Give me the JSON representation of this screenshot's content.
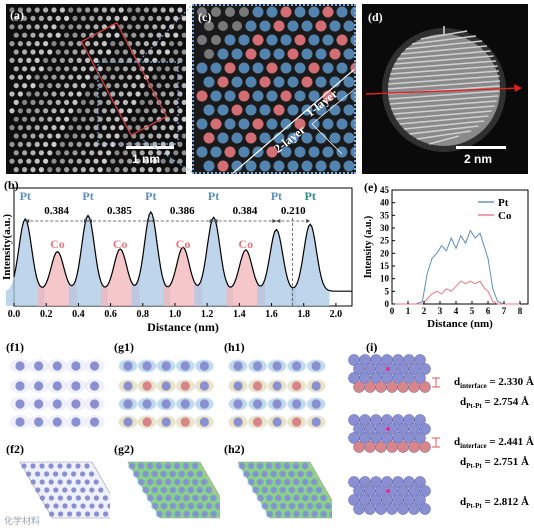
{
  "panels": {
    "a": {
      "label": "(a)",
      "scale": "1 nm"
    },
    "c": {
      "label": "(c)",
      "layer1": "1-layer",
      "layer2": "2-layer"
    },
    "d": {
      "label": "(d)",
      "scale": "2 nm"
    },
    "b": {
      "label": "(b)"
    },
    "e": {
      "label": "(e)"
    },
    "f1": {
      "label": "(f1)"
    },
    "f2": {
      "label": "(f2)"
    },
    "g1": {
      "label": "(g1)"
    },
    "g2": {
      "label": "(g2)"
    },
    "h1": {
      "label": "(h1)"
    },
    "h2": {
      "label": "(h2)"
    },
    "i": {
      "label": "(i)"
    }
  },
  "colors": {
    "pt": "#5a8fc0",
    "co": "#e8787f",
    "dark": "#111111",
    "pt_atom": "#8a8fd2"
  },
  "chart_data": [
    {
      "type": "line",
      "id": "b",
      "xlabel": "Distance (nm)",
      "ylabel": "Intensity(a.u.)",
      "xlim": [
        0.0,
        2.1
      ],
      "xticks": [
        "0.0",
        "0.2",
        "0.4",
        "0.6",
        "0.8",
        "1.0",
        "1.2",
        "1.4",
        "1.6",
        "1.8",
        "2.0"
      ],
      "atoms": [
        {
          "el": "Pt",
          "x": 0.07
        },
        {
          "el": "Co",
          "x": 0.27
        },
        {
          "el": "Pt",
          "x": 0.46
        },
        {
          "el": "Co",
          "x": 0.66
        },
        {
          "el": "Pt",
          "x": 0.85
        },
        {
          "el": "Co",
          "x": 1.05
        },
        {
          "el": "Pt",
          "x": 1.24
        },
        {
          "el": "Co",
          "x": 1.44
        },
        {
          "el": "Pt",
          "x": 1.63
        },
        {
          "el": "Pt",
          "x": 1.84
        }
      ],
      "peak_heights": [
        0.82,
        0.45,
        0.86,
        0.48,
        0.9,
        0.5,
        0.84,
        0.47,
        0.7,
        0.76
      ],
      "spacings": [
        {
          "value": "0.384",
          "x0": 0.07,
          "x1": 0.46
        },
        {
          "value": "0.385",
          "x0": 0.46,
          "x1": 0.85
        },
        {
          "value": "0.386",
          "x0": 0.85,
          "x1": 1.24
        },
        {
          "value": "0.384",
          "x0": 1.24,
          "x1": 1.63
        },
        {
          "value": "0.210",
          "x0": 1.63,
          "x1": 1.84
        }
      ],
      "pt_label": "Pt",
      "co_label": "Co"
    },
    {
      "type": "line",
      "id": "e",
      "xlabel": "Distance (nm)",
      "ylabel": "Intensity (a.u.)",
      "xlim": [
        0,
        8.5
      ],
      "ylim": [
        0,
        45
      ],
      "xticks": [
        0,
        1,
        2,
        3,
        4,
        5,
        6,
        7,
        8
      ],
      "yticks": [
        0,
        5,
        10,
        15,
        20,
        25,
        30,
        35,
        40,
        45
      ],
      "legend": "top-right",
      "series": [
        {
          "name": "Pt",
          "x": [
            0,
            0.5,
            1.0,
            1.5,
            1.9,
            2.2,
            2.5,
            2.8,
            3.1,
            3.4,
            3.7,
            4.0,
            4.3,
            4.6,
            4.9,
            5.2,
            5.5,
            5.8,
            6.0,
            6.3,
            6.6,
            7.0,
            7.5,
            8.0
          ],
          "y": [
            0,
            0,
            0,
            0,
            1,
            12,
            18,
            20,
            23,
            21,
            26,
            22,
            27,
            24,
            29,
            26,
            28,
            22,
            18,
            6,
            1,
            0,
            0,
            0
          ]
        },
        {
          "name": "Co",
          "x": [
            0,
            0.5,
            1.0,
            1.5,
            1.9,
            2.2,
            2.5,
            2.8,
            3.1,
            3.4,
            3.7,
            4.0,
            4.3,
            4.6,
            4.9,
            5.2,
            5.5,
            5.8,
            6.0,
            6.3,
            6.6,
            7.0,
            7.5,
            8.0
          ],
          "y": [
            0,
            0,
            0,
            0,
            0,
            2,
            4,
            5,
            4,
            6,
            5,
            7,
            9,
            8,
            9,
            8,
            9,
            6,
            5,
            1,
            0,
            0,
            0,
            0
          ]
        }
      ]
    }
  ],
  "panel_i": {
    "rows": [
      {
        "l1_main": "d",
        "l1_sub": "interface",
        "l1_val": "= 2.330 Å",
        "l2_main": "d",
        "l2_sub": "Pt-Pt",
        "l2_val": "= 2.754 Å"
      },
      {
        "l1_main": "d",
        "l1_sub": "interface",
        "l1_val": "= 2.441 Å",
        "l2_main": "d",
        "l2_sub": "Pt-Pt",
        "l2_val": "= 2.751 Å"
      },
      {
        "l2_main": "d",
        "l2_sub": "Pt-Pt",
        "l2_val": "= 2.812 Å"
      }
    ]
  },
  "watermark": "化学材料"
}
